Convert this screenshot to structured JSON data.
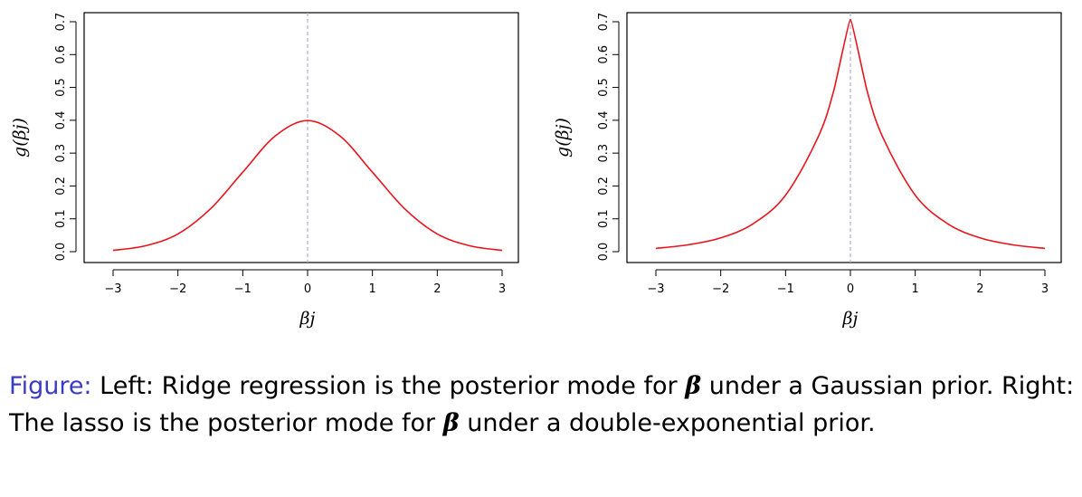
{
  "chart_data": [
    {
      "type": "line",
      "panel": "left",
      "xlabel": "βj",
      "ylabel": "g(βj)",
      "xlim": [
        -3,
        3
      ],
      "ylim": [
        0,
        0.7
      ],
      "x_ticks": [
        "−3",
        "−2",
        "−1",
        "0",
        "1",
        "2",
        "3"
      ],
      "y_ticks": [
        "0.0",
        "0.1",
        "0.2",
        "0.3",
        "0.4",
        "0.5",
        "0.6",
        "0.7"
      ],
      "reference_line_x": 0,
      "series": [
        {
          "color": "#e8141c",
          "x": [
            -3,
            -2.5,
            -2,
            -1.5,
            -1,
            -0.5,
            0,
            0.5,
            1,
            1.5,
            2,
            2.5,
            3
          ],
          "y": [
            0.004,
            0.018,
            0.054,
            0.13,
            0.242,
            0.352,
            0.399,
            0.352,
            0.242,
            0.13,
            0.054,
            0.018,
            0.004
          ]
        }
      ]
    },
    {
      "type": "line",
      "panel": "right",
      "xlabel": "βj",
      "ylabel": "g(βj)",
      "xlim": [
        -3,
        3
      ],
      "ylim": [
        0,
        0.7
      ],
      "x_ticks": [
        "−3",
        "−2",
        "−1",
        "0",
        "1",
        "2",
        "3"
      ],
      "y_ticks": [
        "0.0",
        "0.1",
        "0.2",
        "0.3",
        "0.4",
        "0.5",
        "0.6",
        "0.7"
      ],
      "reference_line_x": 0,
      "series": [
        {
          "color": "#e8141c",
          "x": [
            -3,
            -2.5,
            -2,
            -1.5,
            -1,
            -0.5,
            -0.25,
            0,
            0.25,
            0.5,
            1,
            1.5,
            2,
            2.5,
            3
          ],
          "y": [
            0.01,
            0.021,
            0.042,
            0.085,
            0.172,
            0.348,
            0.495,
            0.707,
            0.495,
            0.348,
            0.172,
            0.085,
            0.042,
            0.021,
            0.01
          ]
        }
      ]
    }
  ],
  "caption": {
    "label": "Figure:",
    "part1": " Left: Ridge regression is the posterior mode for ",
    "beta1": "β",
    "part2": " under a Gaussian prior. Right: The lasso is the posterior mode for ",
    "beta2": "β",
    "part3": " under a double-exponential prior."
  },
  "colors": {
    "curve": "#e8141c",
    "reference_line": "#aab0d8",
    "caption_label": "#3b3bc4"
  }
}
